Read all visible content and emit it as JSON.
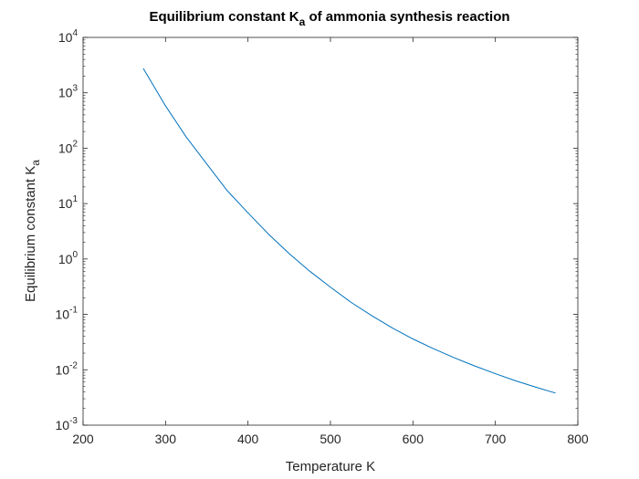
{
  "chart_data": {
    "type": "line",
    "title": {
      "prefix": "Equilibrium constant K",
      "subscript": "a",
      "suffix": " of ammonia synthesis reaction"
    },
    "xlabel": "Temperature K",
    "ylabel": {
      "prefix": "Equilibrium constant K",
      "subscript": "a"
    },
    "xlim": [
      200,
      800
    ],
    "ylim": [
      0.001,
      10000
    ],
    "yscale": "log",
    "grid": false,
    "x_ticks": [
      {
        "value": 200,
        "label": "200"
      },
      {
        "value": 300,
        "label": "300"
      },
      {
        "value": 400,
        "label": "400"
      },
      {
        "value": 500,
        "label": "500"
      },
      {
        "value": 600,
        "label": "600"
      },
      {
        "value": 700,
        "label": "700"
      },
      {
        "value": 800,
        "label": "800"
      }
    ],
    "y_ticks": [
      {
        "value": 0.001,
        "base": "10",
        "exp": "-3"
      },
      {
        "value": 0.01,
        "base": "10",
        "exp": "-2"
      },
      {
        "value": 0.1,
        "base": "10",
        "exp": "-1"
      },
      {
        "value": 1,
        "base": "10",
        "exp": "0"
      },
      {
        "value": 10,
        "base": "10",
        "exp": "1"
      },
      {
        "value": 100,
        "base": "10",
        "exp": "2"
      },
      {
        "value": 1000,
        "base": "10",
        "exp": "3"
      },
      {
        "value": 10000,
        "base": "10",
        "exp": "4"
      }
    ],
    "series": [
      {
        "color": "#0072BD",
        "x": [
          273,
          300,
          325,
          350,
          375,
          400,
          425,
          450,
          475,
          500,
          525,
          550,
          575,
          600,
          625,
          650,
          675,
          700,
          725,
          750,
          773
        ],
        "y": [
          2750,
          580,
          160,
          52,
          17,
          6.8,
          2.8,
          1.25,
          0.6,
          0.31,
          0.165,
          0.095,
          0.057,
          0.036,
          0.024,
          0.0165,
          0.0117,
          0.0085,
          0.0063,
          0.0048,
          0.0038
        ]
      }
    ]
  }
}
